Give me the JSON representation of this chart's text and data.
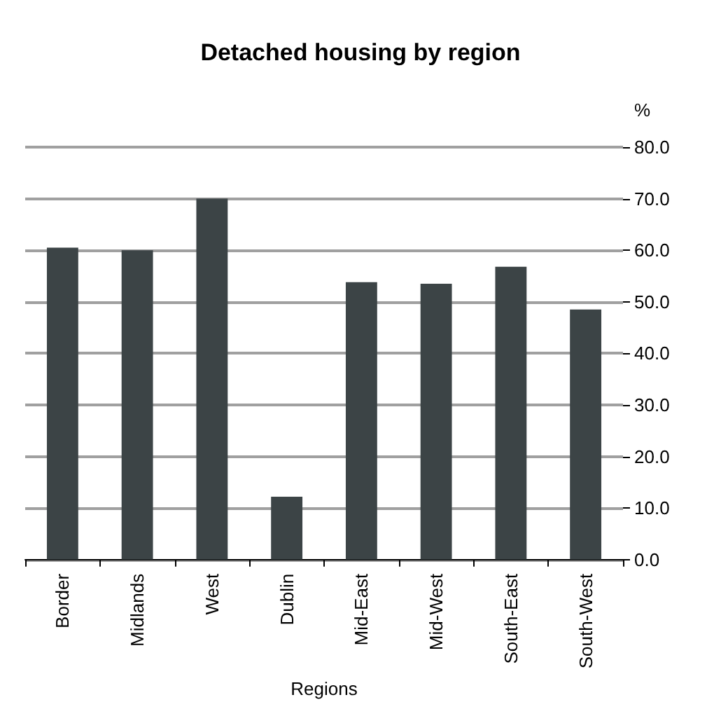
{
  "chart_data": {
    "type": "bar",
    "title": "Detached housing by region",
    "xlabel": "Regions",
    "ylabel": "%",
    "categories": [
      "Border",
      "Midlands",
      "West",
      "Dublin",
      "Mid-East",
      "Mid-West",
      "South-East",
      "South-West"
    ],
    "values": [
      60.5,
      60.0,
      70.0,
      12.2,
      53.8,
      53.5,
      56.8,
      48.5
    ],
    "color": "#3c4446",
    "ylim": [
      0,
      80
    ],
    "yticks": [
      {
        "value": 0,
        "label": "0.0"
      },
      {
        "value": 10,
        "label": "10.0"
      },
      {
        "value": 20,
        "label": "20.0"
      },
      {
        "value": 30,
        "label": "30.0"
      },
      {
        "value": 40,
        "label": "40.0"
      },
      {
        "value": 50,
        "label": "50.0"
      },
      {
        "value": 60,
        "label": "60.0"
      },
      {
        "value": 70,
        "label": "70.0"
      },
      {
        "value": 80,
        "label": "80.0"
      }
    ],
    "grid": "y"
  }
}
